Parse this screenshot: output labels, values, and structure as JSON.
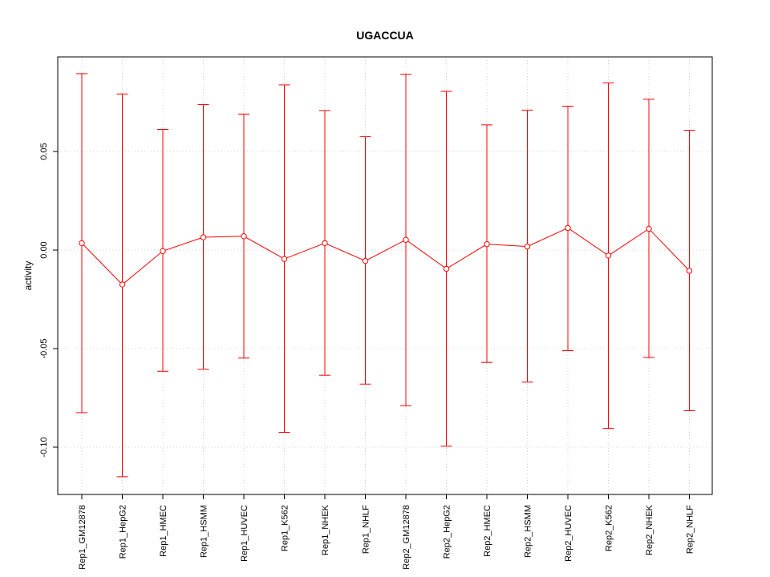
{
  "chart_data": {
    "type": "line",
    "title": "UGACCUA",
    "xlabel": "",
    "ylabel": "activity",
    "categories": [
      "Rep1_GM12878",
      "Rep1_HepG2",
      "Rep1_HMEC",
      "Rep1_HSMM",
      "Rep1_HUVEC",
      "Rep1_K562",
      "Rep1_NHEK",
      "Rep1_NHLF",
      "Rep2_GM12878",
      "Rep2_HepG2",
      "Rep2_HMEC",
      "Rep2_HSMM",
      "Rep2_HUVEC",
      "Rep2_K562",
      "Rep2_NHEK",
      "Rep2_NHLF"
    ],
    "series": [
      {
        "values": [
          0.0035,
          -0.0175,
          -0.0005,
          0.0065,
          0.007,
          -0.0045,
          0.0035,
          -0.0055,
          0.0052,
          -0.0095,
          0.003,
          0.0018,
          0.0112,
          -0.0028,
          0.0108,
          -0.0105
        ],
        "upper": [
          0.0895,
          0.0792,
          0.0612,
          0.0738,
          0.069,
          0.0838,
          0.0708,
          0.0575,
          0.0892,
          0.0805,
          0.0635,
          0.071,
          0.073,
          0.0848,
          0.0765,
          0.0608
        ],
        "lower": [
          -0.0825,
          -0.115,
          -0.0615,
          -0.0605,
          -0.0548,
          -0.0925,
          -0.0635,
          -0.068,
          -0.079,
          -0.0995,
          -0.057,
          -0.067,
          -0.051,
          -0.0905,
          -0.0545,
          -0.0815
        ]
      }
    ],
    "ylim": [
      -0.124,
      0.098
    ],
    "yticks": [
      -0.1,
      -0.05,
      0.0,
      0.05
    ],
    "ytick_labels": [
      "-0.10",
      "-0.05",
      "0.00",
      "0.05"
    ],
    "grid": true,
    "colors": {
      "series": "#ff0000",
      "grid": "#d3d3d3",
      "frame": "#000000"
    }
  }
}
